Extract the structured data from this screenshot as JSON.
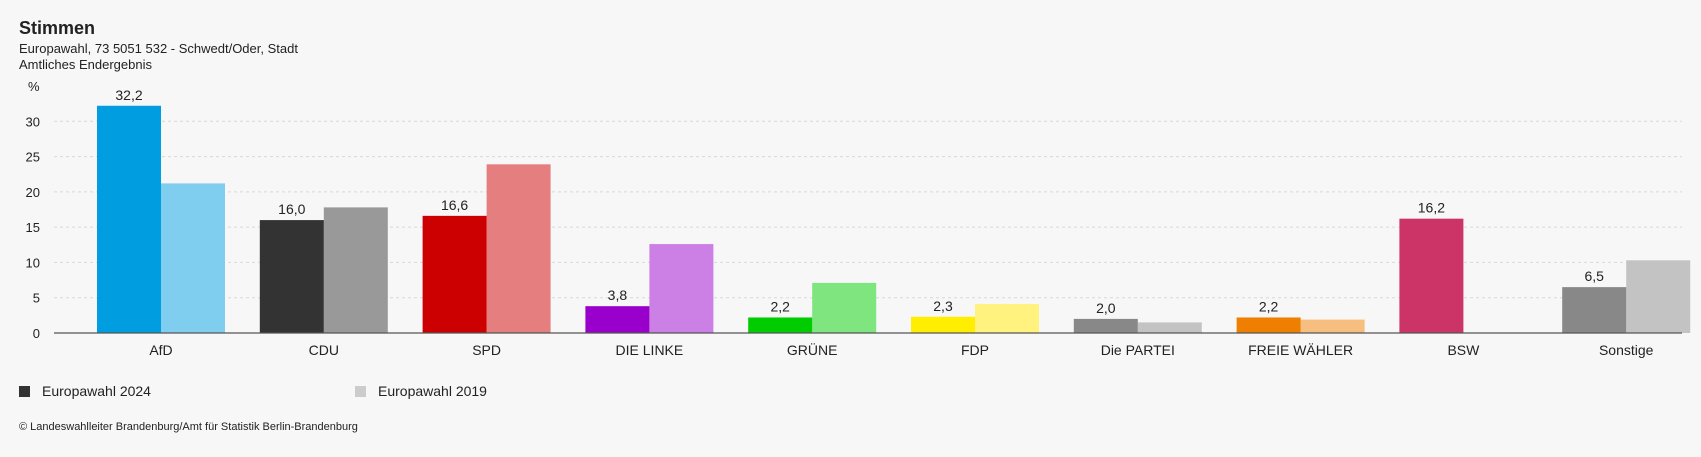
{
  "header": {
    "title": "Stimmen",
    "subtitle_line1": "Europawahl, 73 5051 532 - Schwedt/Oder, Stadt",
    "subtitle_line2": "Amtliches Endergebnis"
  },
  "chart_data": {
    "type": "bar",
    "ylabel": "%",
    "ylim": [
      0,
      35
    ],
    "yticks": [
      0,
      5,
      10,
      15,
      20,
      25,
      30
    ],
    "categories": [
      "AfD",
      "CDU",
      "SPD",
      "DIE LINKE",
      "GRÜNE",
      "FDP",
      "Die PARTEI",
      "FREIE WÄHLER",
      "BSW",
      "Sonstige"
    ],
    "series": [
      {
        "name": "Europawahl 2024",
        "values": [
          32.2,
          16.0,
          16.6,
          3.8,
          2.2,
          2.3,
          2.0,
          2.2,
          16.2,
          6.5
        ],
        "labels": [
          "32,2",
          "16,0",
          "16,6",
          "3,8",
          "2,2",
          "2,3",
          "2,0",
          "2,2",
          "16,2",
          "6,5"
        ],
        "colors": [
          "#009ee0",
          "#333333",
          "#cc0000",
          "#9900cc",
          "#00cc00",
          "#ffee00",
          "#888888",
          "#ee7f00",
          "#cc3366",
          "#888888"
        ]
      },
      {
        "name": "Europawahl 2019",
        "values": [
          21.2,
          17.8,
          23.9,
          12.6,
          7.1,
          4.1,
          1.5,
          1.9,
          null,
          10.3
        ],
        "colors": [
          "#7fcef0",
          "#999999",
          "#e57f7f",
          "#cc7fe5",
          "#7fe57f",
          "#fff27f",
          "#c3c3c3",
          "#f6bf7f",
          "#e599b2",
          "#c3c3c3"
        ]
      }
    ],
    "legend": [
      {
        "label": "Europawahl 2024",
        "color": "#333333"
      },
      {
        "label": "Europawahl 2019",
        "color": "#cccccc"
      }
    ],
    "grid": true
  },
  "footer": {
    "text": "© Landeswahlleiter Brandenburg/Amt für Statistik Berlin-Brandenburg"
  }
}
